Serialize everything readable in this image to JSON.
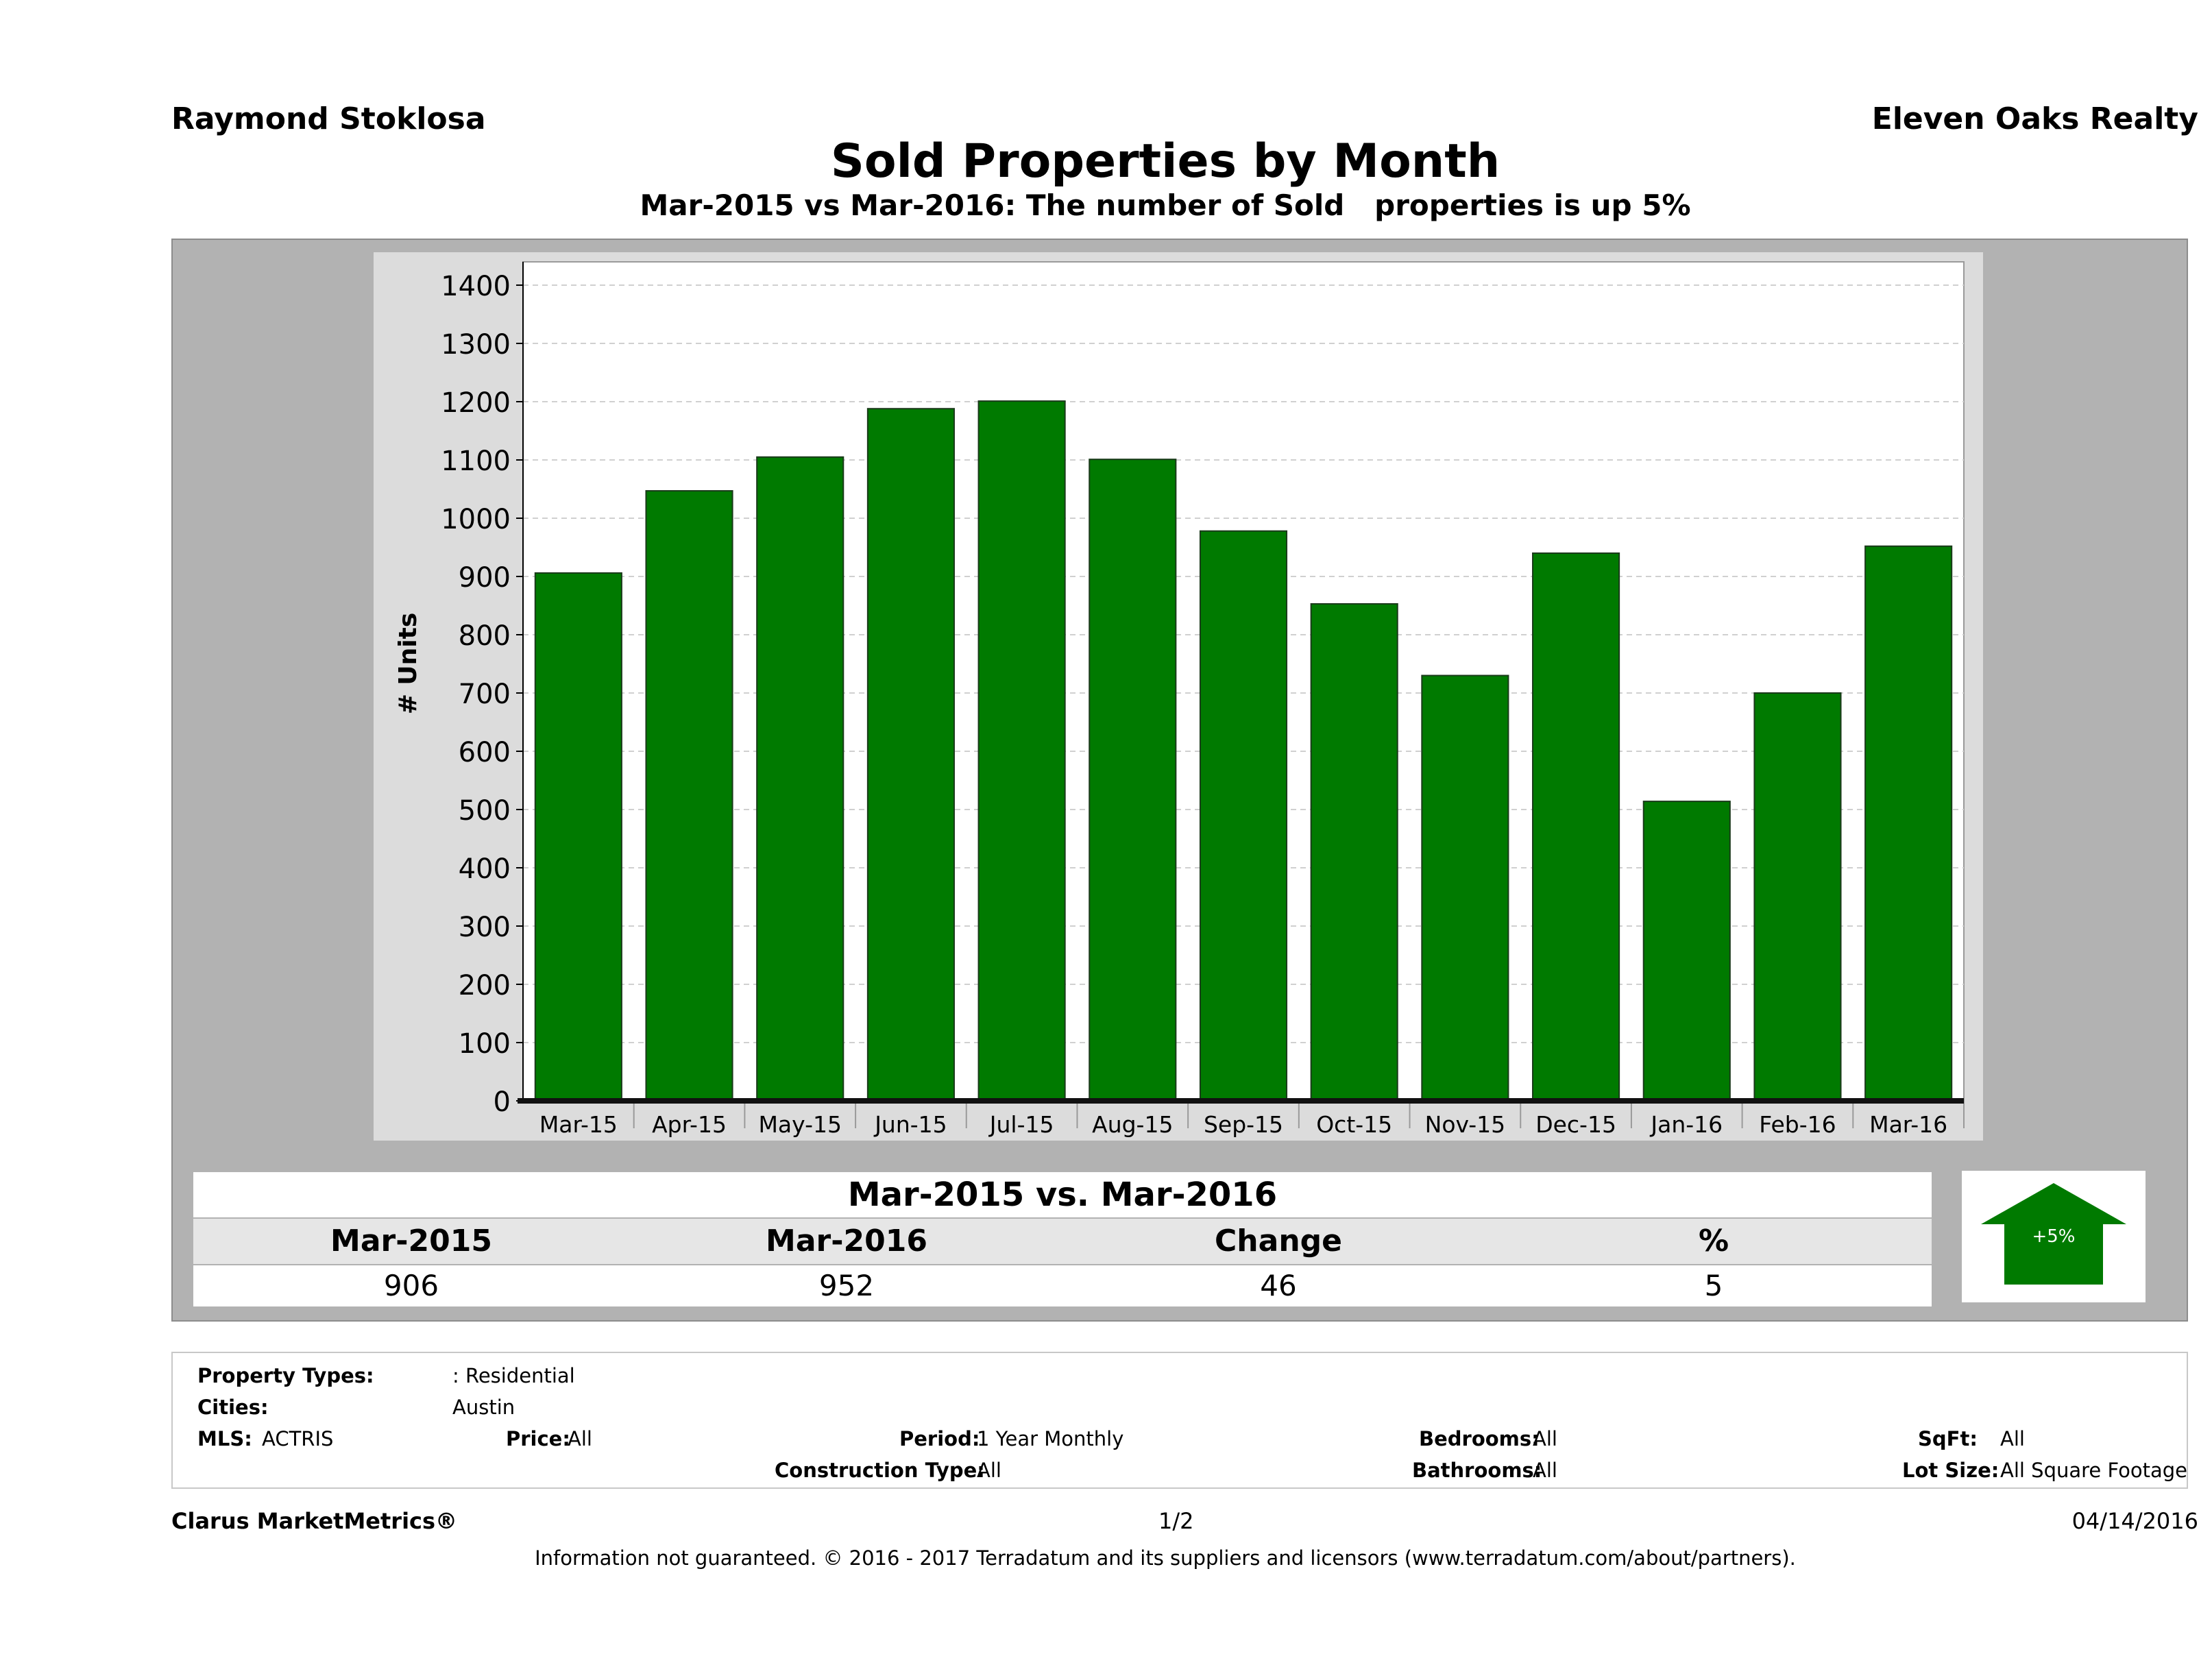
{
  "header": {
    "agent": "Raymond Stoklosa",
    "brokerage": "Eleven Oaks Realty",
    "title": "Sold Properties by Month",
    "subtitle": "Mar-2015 vs Mar-2016: The number of Sold   properties is up 5%"
  },
  "chart_data": {
    "type": "bar",
    "title": "Sold Properties by Month",
    "xlabel": "",
    "ylabel": "# Units",
    "ylim": [
      0,
      1400
    ],
    "yticks": [
      0,
      100,
      200,
      300,
      400,
      500,
      600,
      700,
      800,
      900,
      1000,
      1100,
      1200,
      1300,
      1400
    ],
    "grid": true,
    "categories": [
      "Mar-15",
      "Apr-15",
      "May-15",
      "Jun-15",
      "Jul-15",
      "Aug-15",
      "Sep-15",
      "Oct-15",
      "Nov-15",
      "Dec-15",
      "Jan-16",
      "Feb-16",
      "Mar-16"
    ],
    "values": [
      906,
      1047,
      1105,
      1188,
      1201,
      1101,
      978,
      853,
      730,
      940,
      514,
      700,
      952
    ],
    "bar_color": "#007a00"
  },
  "comparison": {
    "title": "Mar-2015 vs. Mar-2016",
    "headers": [
      "Mar-2015",
      "Mar-2016",
      "Change",
      "%"
    ],
    "values": [
      "906",
      "952",
      "46",
      "5"
    ],
    "badge": "+5%",
    "badge_color": "#007a00"
  },
  "filters": {
    "property_types_label": "Property Types:",
    "property_types_value": ": Residential",
    "cities_label": "Cities:",
    "cities_value": "Austin",
    "mls_label": "MLS:",
    "mls_value": "ACTRIS",
    "price_label": "Price:",
    "price_value": "All",
    "period_label": "Period:",
    "period_value": "1 Year Monthly",
    "construction_label": "Construction Type:",
    "construction_value": "All",
    "bedrooms_label": "Bedrooms:",
    "bedrooms_value": "All",
    "bathrooms_label": "Bathrooms:",
    "bathrooms_value": "All",
    "sqft_label": "SqFt:",
    "sqft_value": "All",
    "lotsize_label": "Lot Size:",
    "lotsize_value": "All Square Footage"
  },
  "footer": {
    "product": "Clarus MarketMetrics®",
    "page": "1/2",
    "date": "04/14/2016",
    "disclaimer": "Information not guaranteed. © 2016 - 2017 Terradatum and its suppliers and licensors (www.terradatum.com/about/partners)."
  }
}
